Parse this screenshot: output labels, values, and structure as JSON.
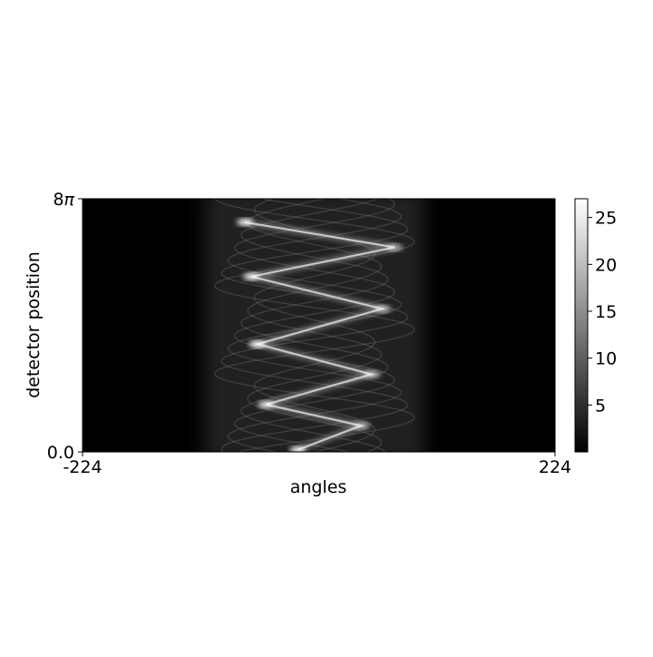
{
  "chart_data": {
    "type": "heatmap",
    "title": "",
    "xlabel": "angles",
    "ylabel": "detector position",
    "x_tick_labels": [
      "-224",
      "224"
    ],
    "xlim": [
      -224,
      224
    ],
    "y_tick_labels": [
      "0.0",
      "8π"
    ],
    "y_tick_label_top": {
      "base": "8",
      "symbol": "π"
    },
    "ylim": [
      0,
      25.13
    ],
    "colormap": "gray",
    "colorbar": {
      "range": [
        0,
        27
      ],
      "ticks": [
        5,
        10,
        15,
        20,
        25
      ],
      "tick_labels": [
        "5",
        "10",
        "15",
        "20",
        "25"
      ]
    },
    "grid": false,
    "signal_band_x": [
      -108,
      100
    ],
    "zigzag_vertices": [
      {
        "x": -70,
        "y": 22.8
      },
      {
        "x": 72,
        "y": 20.3
      },
      {
        "x": -64,
        "y": 17.4
      },
      {
        "x": 60,
        "y": 14.2
      },
      {
        "x": -58,
        "y": 10.7
      },
      {
        "x": 50,
        "y": 7.7
      },
      {
        "x": -50,
        "y": 4.7
      },
      {
        "x": 40,
        "y": 2.6
      },
      {
        "x": -20,
        "y": 0.2
      }
    ],
    "peak_value": 27
  },
  "colors": {
    "background": "#000000",
    "axis": "#000000",
    "page": "#ffffff"
  }
}
